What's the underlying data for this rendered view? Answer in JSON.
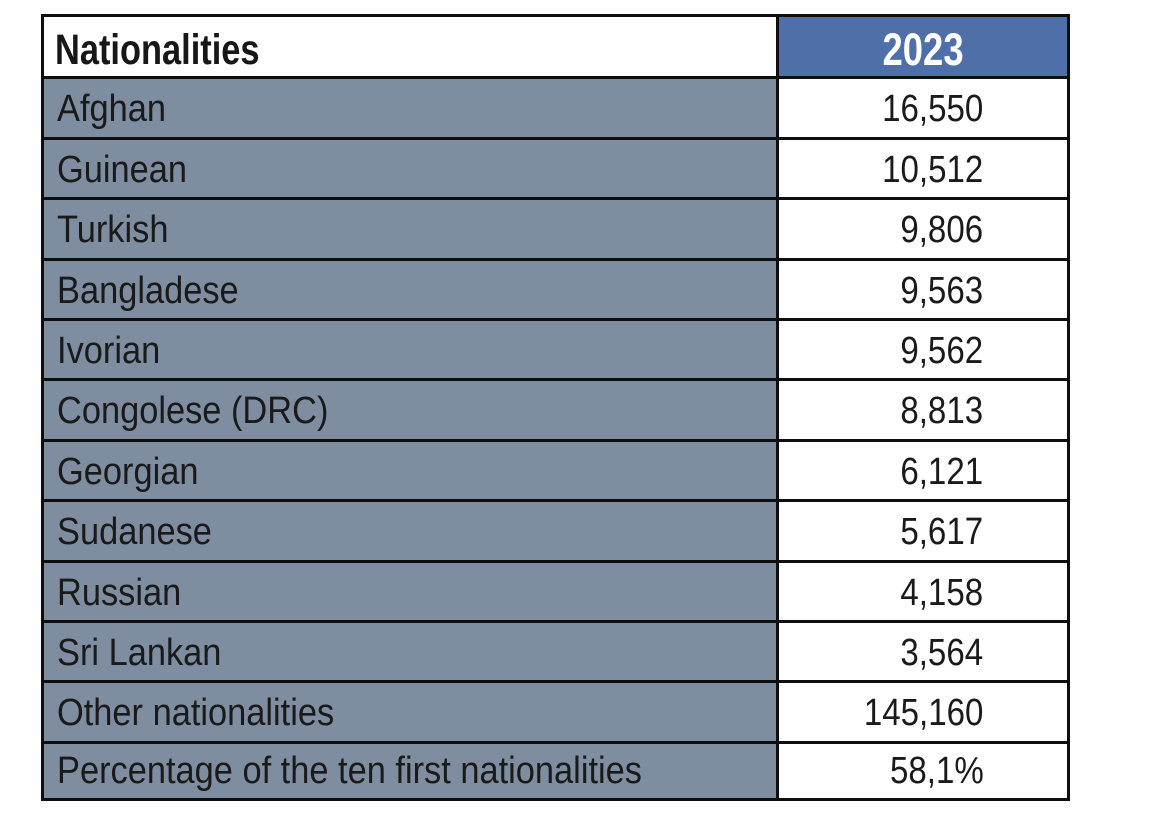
{
  "table": {
    "header": {
      "label_col": "Nationalities",
      "value_col": "2023"
    },
    "rows": [
      {
        "label": "Afghan",
        "value": "16,550"
      },
      {
        "label": "Guinean",
        "value": "10,512"
      },
      {
        "label": "Turkish",
        "value": "9,806"
      },
      {
        "label": "Bangladese",
        "value": "9,563"
      },
      {
        "label": "Ivorian",
        "value": "9,562"
      },
      {
        "label": "Congolese (DRC)",
        "value": "8,813"
      },
      {
        "label": "Georgian",
        "value": "6,121"
      },
      {
        "label": "Sudanese",
        "value": "5,617"
      },
      {
        "label": "Russian",
        "value": "4,158"
      },
      {
        "label": "Sri Lankan",
        "value": "3,564"
      },
      {
        "label": "Other nationalities",
        "value": "145,160"
      },
      {
        "label": "Percentage of the ten first nationalities",
        "value": "58,1%"
      }
    ],
    "colors": {
      "header_value_bg": "#4e6fa7",
      "header_value_text": "#ffffff",
      "label_cell_bg": "#7e8da0",
      "value_cell_bg": "#ffffff",
      "text": "#1a1a1a",
      "border": "#0e0e0e"
    }
  },
  "chart_data": {
    "type": "table",
    "columns": [
      "Nationalities",
      "2023"
    ],
    "rows": [
      [
        "Afghan",
        "16,550"
      ],
      [
        "Guinean",
        "10,512"
      ],
      [
        "Turkish",
        "9,806"
      ],
      [
        "Bangladese",
        "9,563"
      ],
      [
        "Ivorian",
        "9,562"
      ],
      [
        "Congolese (DRC)",
        "8,813"
      ],
      [
        "Georgian",
        "6,121"
      ],
      [
        "Sudanese",
        "5,617"
      ],
      [
        "Russian",
        "4,158"
      ],
      [
        "Sri Lankan",
        "3,564"
      ],
      [
        "Other nationalities",
        "145,160"
      ],
      [
        "Percentage of the ten first nationalities",
        "58,1%"
      ]
    ]
  }
}
